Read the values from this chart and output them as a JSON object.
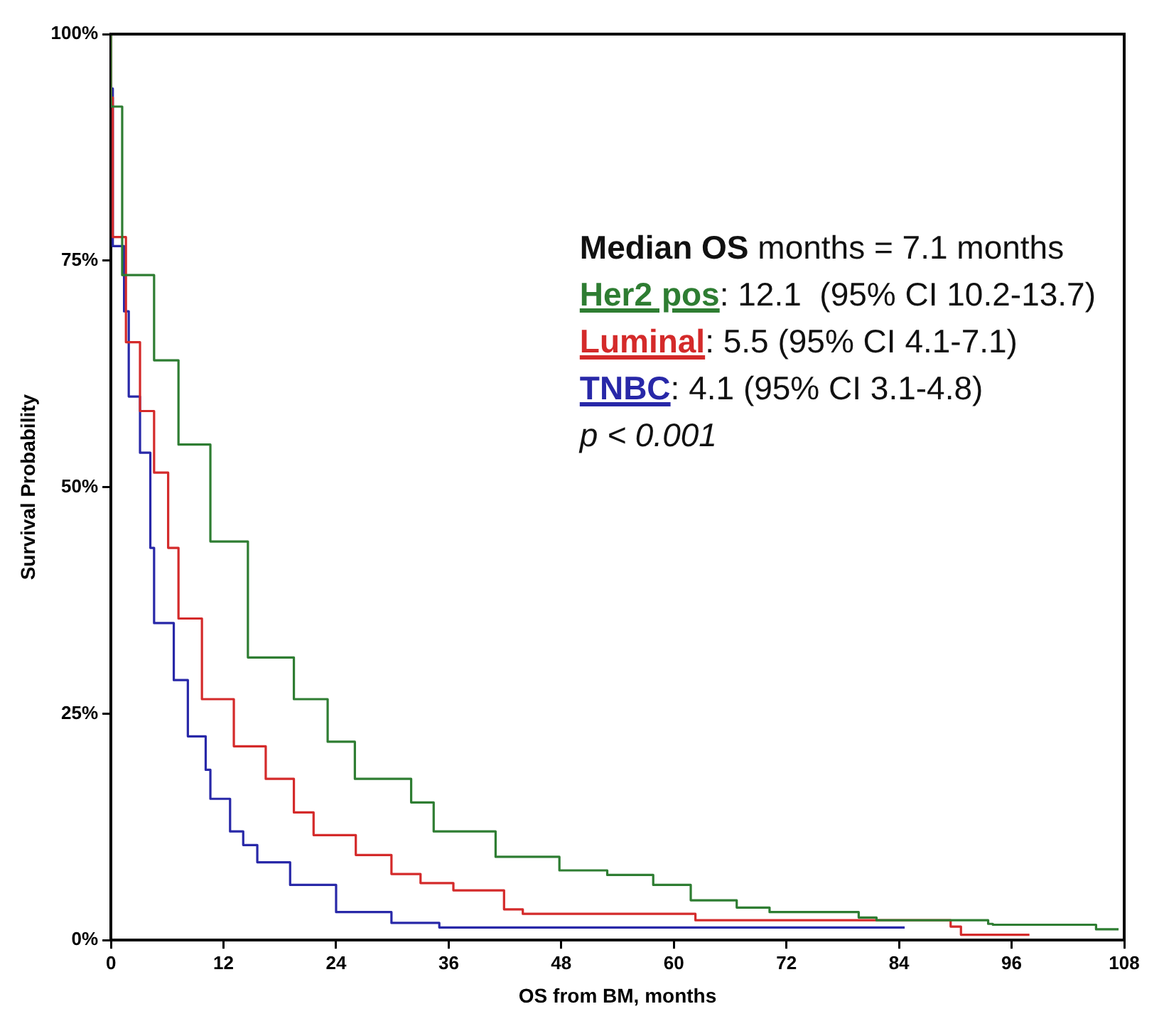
{
  "chart_data": {
    "type": "step",
    "xlabel": "OS from BM, months",
    "ylabel": "Survival Probability",
    "legend_title": "Median OS",
    "legend": "top right",
    "marker": "none",
    "line_style": "solid",
    "grid": false,
    "annotations": [
      "months = 7.1 months",
      ": 12.1  (95% CI 10.2-13.7)",
      ": 5.5 (95% CI 4.1-7.1)",
      ": 4.1 (95% CI 3.1-4.8)",
      "p < 0.001"
    ],
    "xlim": [
      0,
      108
    ],
    "xticks": [
      0,
      12,
      24,
      36,
      48,
      60,
      72,
      84,
      96,
      108
    ],
    "ylim": [
      0,
      100
    ],
    "yticks": [
      {
        "value": 0,
        "label": "0%"
      },
      {
        "value": 25,
        "label": "25%"
      },
      {
        "value": 50,
        "label": "50%"
      },
      {
        "value": 75,
        "label": "75%"
      },
      {
        "value": 100,
        "label": "100%"
      }
    ],
    "series": [
      {
        "name": "Her2 pos",
        "color": "#2e7d32",
        "x": [
          0,
          1.2,
          4.6,
          7.2,
          10.6,
          14.6,
          19.5,
          23.1,
          26,
          32,
          34.4,
          41,
          47.8,
          52.9,
          57.8,
          61.8,
          66.7,
          70.2,
          79.7,
          81.6,
          93.5,
          94,
          105,
          107.4
        ],
        "values": [
          100,
          92,
          73.4,
          64,
          54.7,
          44,
          31.2,
          26.6,
          21.9,
          17.8,
          15.2,
          12,
          9.2,
          7.7,
          7.2,
          6.1,
          4.4,
          3.6,
          3.1,
          2.5,
          2.2,
          1.8,
          1.7,
          1.2
        ]
      },
      {
        "name": "Luminal",
        "color": "#d42a2a",
        "x": [
          0,
          0.2,
          1.6,
          3.1,
          4.6,
          6.1,
          7.2,
          9.7,
          13.1,
          16.5,
          19.5,
          21.6,
          26.1,
          29.9,
          33,
          36.5,
          41.9,
          43.9,
          62.3,
          67.8,
          89.5,
          90.6,
          91.6,
          97.9
        ],
        "values": [
          100,
          93,
          77.6,
          66,
          58.4,
          51.6,
          43.3,
          35.5,
          26.6,
          21.4,
          17.8,
          14.1,
          11.6,
          9.4,
          7.3,
          6.3,
          5.5,
          3.4,
          2.9,
          2.2,
          2.2,
          1.5,
          0.6,
          0.6
        ]
      },
      {
        "name": "TNBC",
        "color": "#2828a8",
        "x": [
          0,
          0.2,
          1.4,
          1.9,
          3.1,
          4.2,
          4.6,
          6.7,
          8.2,
          10.1,
          10.6,
          12.7,
          14.1,
          15.6,
          19.1,
          24,
          29.9,
          35,
          43.9,
          84.6
        ],
        "values": [
          100,
          94,
          76.6,
          69.4,
          60,
          53.8,
          43.3,
          35,
          28.7,
          22.5,
          18.8,
          15.6,
          12,
          10.5,
          8.6,
          6.1,
          3.1,
          1.9,
          1.4,
          1.4
        ]
      }
    ]
  }
}
